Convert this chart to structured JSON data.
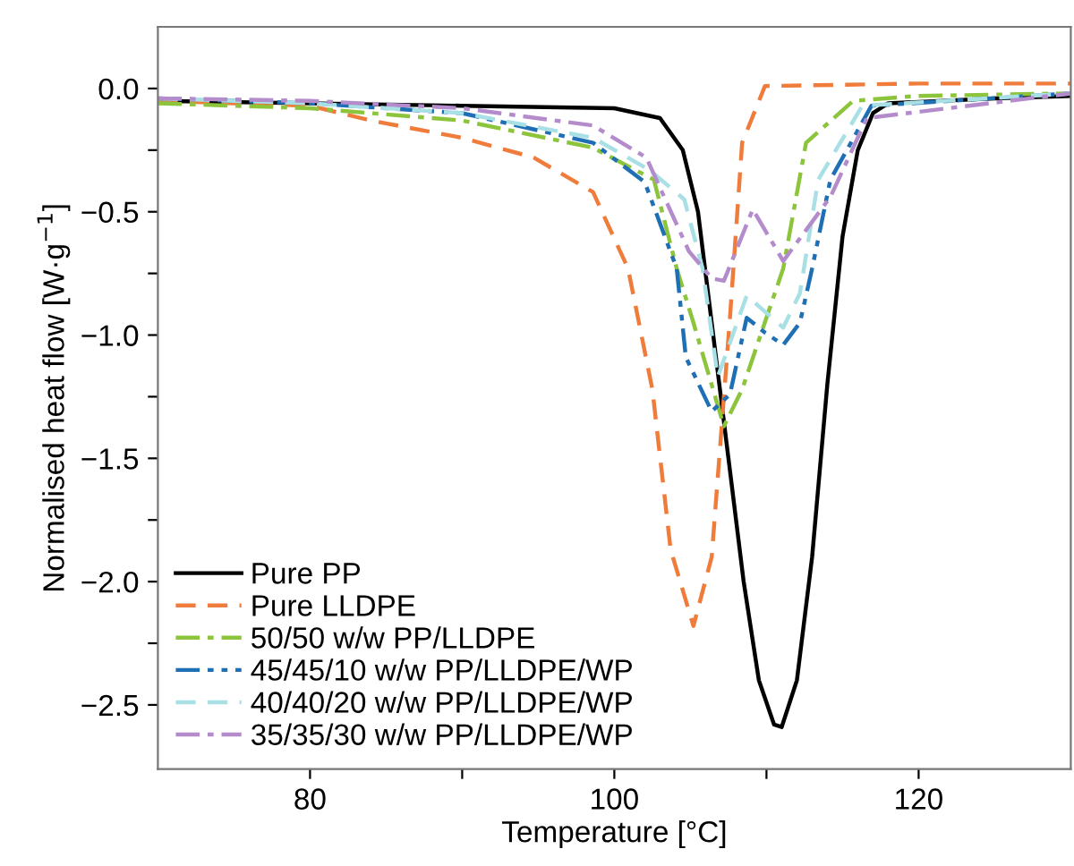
{
  "chart_data": {
    "type": "line",
    "xlabel": "Temperature [°C]",
    "ylabel": "Normalised heat flow [W·g$^{−1}$]",
    "xlim": [
      70,
      130
    ],
    "ylim": [
      -2.76,
      0.25
    ],
    "xticks": [
      80,
      {
        "value": 90,
        "label": null
      },
      100,
      {
        "value": 110,
        "label": null
      },
      120
    ],
    "yticks": [
      {
        "value": -2.5,
        "label": "−2.5"
      },
      {
        "value": -2.25,
        "label": null
      },
      {
        "value": -2.0,
        "label": "−2.0"
      },
      {
        "value": -1.75,
        "label": null
      },
      {
        "value": -1.5,
        "label": "−1.5"
      },
      {
        "value": -1.25,
        "label": null
      },
      {
        "value": -1.0,
        "label": "−1.0"
      },
      {
        "value": -0.75,
        "label": null
      },
      {
        "value": -0.5,
        "label": "−0.5"
      },
      {
        "value": -0.25,
        "label": null
      },
      {
        "value": 0.0,
        "label": "0.0"
      }
    ],
    "grid": false,
    "legend": "bottom left",
    "series": [
      {
        "name": "Pure PP",
        "color": "#000000",
        "line_style": "solid",
        "x": [
          70,
          90,
          100,
          103,
          104.5,
          105.5,
          106.5,
          107.5,
          108.5,
          109.5,
          110.5,
          111,
          112,
          113,
          114,
          115,
          116,
          117,
          118,
          125,
          130
        ],
        "values": [
          -0.05,
          -0.07,
          -0.08,
          -0.12,
          -0.25,
          -0.5,
          -1.0,
          -1.5,
          -2.0,
          -2.4,
          -2.58,
          -2.59,
          -2.4,
          -1.9,
          -1.2,
          -0.6,
          -0.25,
          -0.1,
          -0.06,
          -0.04,
          -0.03
        ]
      },
      {
        "name": "Pure LLDPE",
        "color": "#f07c3c",
        "line_style": "dashed",
        "x": [
          70,
          80,
          84,
          90,
          94.7,
          98.6,
          100.9,
          102.5,
          103.7,
          105.2,
          106.4,
          107.6,
          108.4,
          109.9,
          120,
          130
        ],
        "values": [
          -0.05,
          -0.07,
          -0.13,
          -0.2,
          -0.28,
          -0.42,
          -0.73,
          -1.22,
          -1.87,
          -2.18,
          -1.9,
          -0.93,
          -0.22,
          0.01,
          0.02,
          0.02
        ]
      },
      {
        "name": "50/50 w/w PP/LLDPE",
        "color": "#8cc43c",
        "line_style": "dashdot",
        "x": [
          70,
          80,
          90,
          98.6,
          102.6,
          104.1,
          105.2,
          107.2,
          108.4,
          111.1,
          112.6,
          115.7,
          120,
          130
        ],
        "values": [
          -0.06,
          -0.08,
          -0.13,
          -0.24,
          -0.37,
          -0.73,
          -0.95,
          -1.37,
          -1.22,
          -0.73,
          -0.22,
          -0.05,
          -0.03,
          -0.02
        ]
      },
      {
        "name": "45/45/10 w/w PP/LLDPE/WP",
        "color": "#1f6fb4",
        "line_style": "dashdotdot",
        "x": [
          70,
          80,
          90,
          98.6,
          102,
          104.1,
          104.7,
          106.4,
          107.6,
          108.7,
          109.9,
          111.1,
          112.2,
          113,
          114.2,
          116.9,
          130
        ],
        "values": [
          -0.04,
          -0.06,
          -0.1,
          -0.22,
          -0.38,
          -0.73,
          -1.09,
          -1.31,
          -1.24,
          -0.93,
          -0.99,
          -1.04,
          -0.95,
          -0.73,
          -0.37,
          -0.07,
          -0.02
        ]
      },
      {
        "name": "40/40/20 w/w PP/LLDPE/WP",
        "color": "#a8e0e6",
        "line_style": "dashed",
        "x": [
          70,
          80,
          90,
          98.6,
          102.3,
          104.6,
          105.8,
          106.8,
          108.7,
          111.1,
          112.2,
          113.4,
          116.3,
          130
        ],
        "values": [
          -0.04,
          -0.06,
          -0.1,
          -0.2,
          -0.33,
          -0.45,
          -0.73,
          -1.17,
          -0.84,
          -0.97,
          -0.83,
          -0.37,
          -0.07,
          -0.02
        ]
      },
      {
        "name": "35/35/30 w/w PP/LLDPE/WP",
        "color": "#b48ccc",
        "line_style": "dashdot",
        "x": [
          70,
          80,
          90,
          98.6,
          102.1,
          104.9,
          106.4,
          107.2,
          109.1,
          111.1,
          114.2,
          116.6,
          130
        ],
        "values": [
          -0.04,
          -0.05,
          -0.08,
          -0.15,
          -0.28,
          -0.66,
          -0.77,
          -0.78,
          -0.49,
          -0.7,
          -0.44,
          -0.12,
          -0.02
        ]
      }
    ]
  }
}
